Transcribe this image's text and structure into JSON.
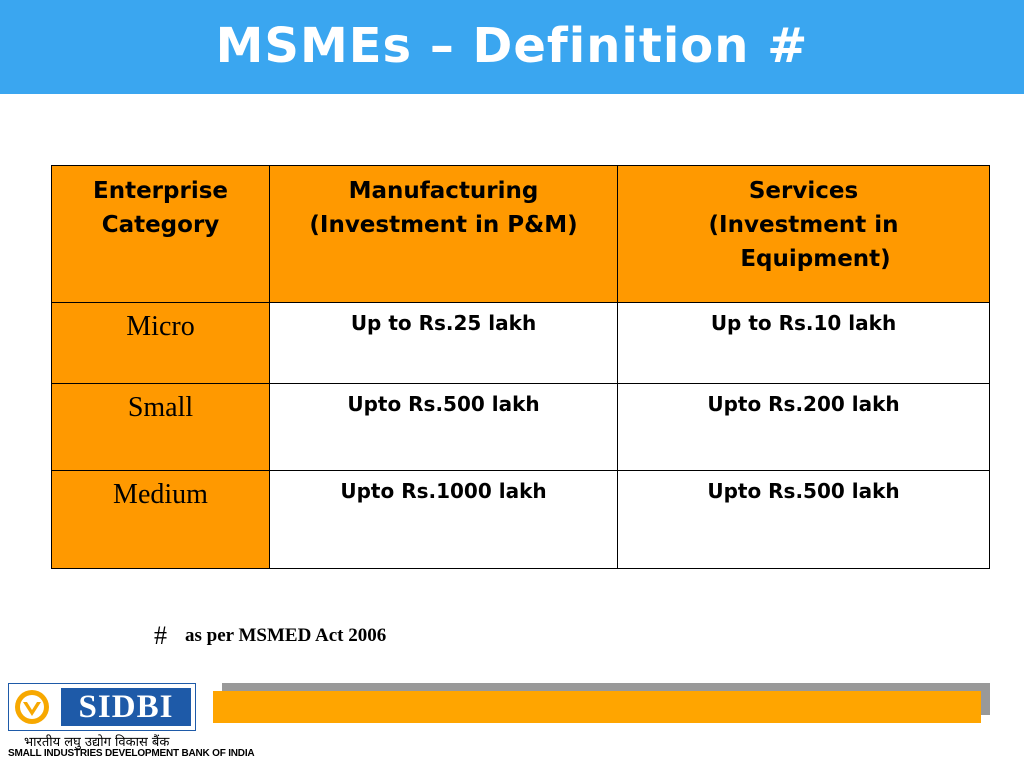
{
  "title": "MSMEs – Definition #",
  "table": {
    "headers": [
      [
        "Enterprise",
        "Category"
      ],
      [
        "Manufacturing",
        "(Investment in P&M)"
      ],
      [
        "Services",
        "(Investment in",
        "Equipment)"
      ]
    ],
    "rows": [
      {
        "category": "Micro",
        "manufacturing": "Up to Rs.25 lakh",
        "services": "Up to Rs.10 lakh"
      },
      {
        "category": "Small",
        "manufacturing": "Upto Rs.500 lakh",
        "services": "Upto Rs.200 lakh"
      },
      {
        "category": "Medium",
        "manufacturing": "Upto Rs.1000 lakh",
        "services": "Upto Rs.500 lakh"
      }
    ]
  },
  "footnote": {
    "symbol": "#",
    "text": "as per MSMED Act 2006"
  },
  "logo": {
    "name": "SIDBI",
    "hindi": "भारतीय लघु उद्योग विकास बैंक",
    "english": "SMALL INDUSTRIES DEVELOPMENT BANK OF INDIA"
  },
  "colors": {
    "title_bar": "#3aa6f0",
    "header_fill": "#ff9900",
    "logo_blue": "#1e5aa8",
    "footer_bar": "#ffa500"
  }
}
